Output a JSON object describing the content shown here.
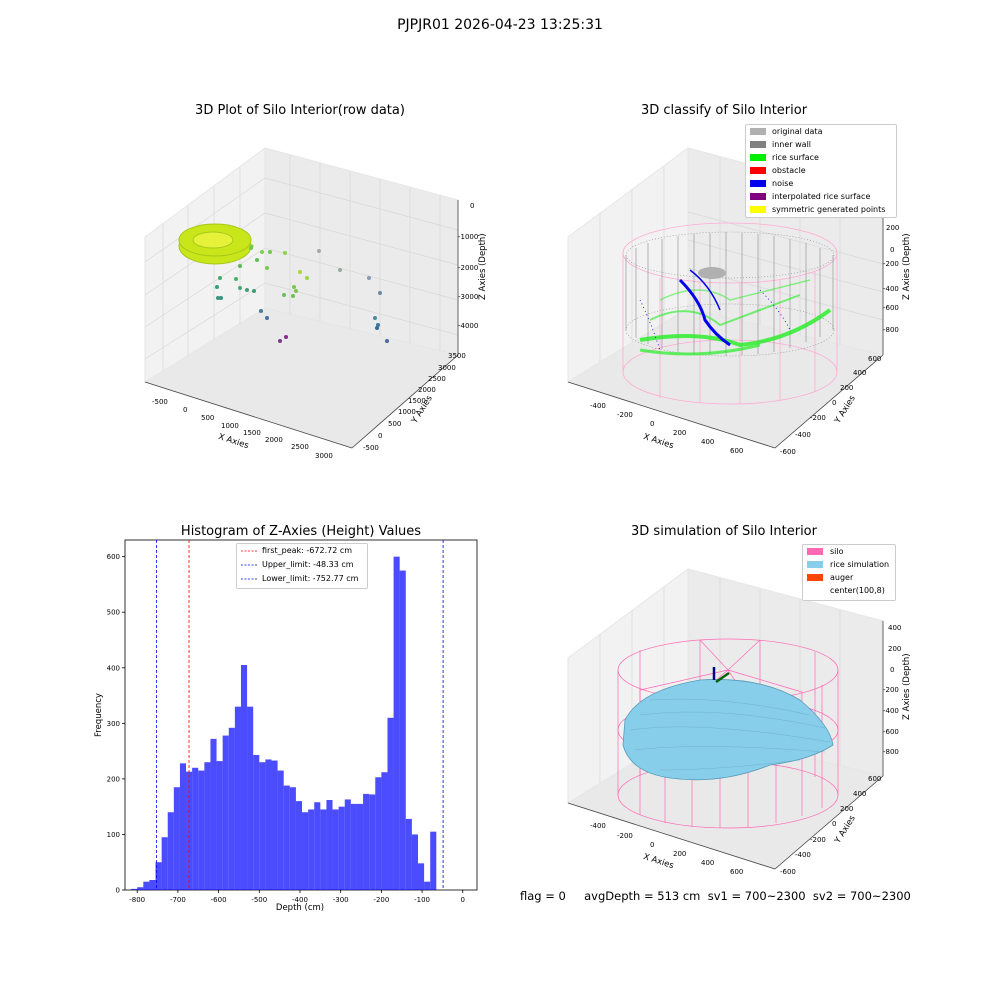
{
  "suptitle": "PJPJR01 2026-04-23 13:25:31",
  "footer": "flag = 0     avgDepth = 513 cm  sv1 = 700~2300  sv2 = 700~2300",
  "plots": {
    "raw": {
      "title": "3D Plot of Silo Interior(row data)",
      "xlabel": "X Axies",
      "ylabel": "Y Axies",
      "zlabel": "Z Axies (Depth)",
      "xticks": [
        "-500",
        "0",
        "500",
        "1000",
        "1500",
        "2000",
        "2500",
        "3000"
      ],
      "yticks": [
        "-500",
        "0",
        "500",
        "1000",
        "1500",
        "2000",
        "2500",
        "3000",
        "3500"
      ],
      "zticks": [
        "0",
        "-1000",
        "-2000",
        "-3000",
        "-4000"
      ]
    },
    "classify": {
      "title": "3D classify of Silo Interior",
      "xlabel": "X Axies",
      "ylabel": "Y Axies",
      "zlabel": "Z Axies (Depth)",
      "xticks": [
        "-400",
        "-200",
        "0",
        "200",
        "400",
        "600"
      ],
      "yticks": [
        "-600",
        "-400",
        "-200",
        "0",
        "200",
        "400",
        "600"
      ],
      "zticks": [
        "200",
        "0",
        "-200",
        "-400",
        "-600",
        "-800"
      ],
      "legend": [
        {
          "label": "original data",
          "color": "#b0b0b0"
        },
        {
          "label": "inner wall",
          "color": "#808080"
        },
        {
          "label": "rice surface",
          "color": "#00ee00"
        },
        {
          "label": "obstacle",
          "color": "#ff0000"
        },
        {
          "label": "noise",
          "color": "#0000ee"
        },
        {
          "label": "interpolated rice surface",
          "color": "#800080"
        },
        {
          "label": "symmetric generated points",
          "color": "#ffff00"
        }
      ]
    },
    "simulation": {
      "title": "3D simulation of Silo Interior",
      "xlabel": "X Axies",
      "ylabel": "Y Axies",
      "zlabel": "Z Axies (Depth)",
      "xticks": [
        "-400",
        "-200",
        "0",
        "200",
        "400",
        "600"
      ],
      "yticks": [
        "-600",
        "-400",
        "-200",
        "0",
        "200",
        "400",
        "600"
      ],
      "zticks": [
        "400",
        "200",
        "0",
        "-200",
        "-400",
        "-600",
        "-800"
      ],
      "legend": [
        {
          "label": "silo",
          "color": "#ff69b4"
        },
        {
          "label": "rice simulation",
          "color": "#87ceeb"
        },
        {
          "label": "auger",
          "color": "#ff4500"
        },
        {
          "label": "center(100,8)",
          "color": "#ffffff"
        }
      ]
    }
  },
  "chart_data": [
    {
      "type": "bar",
      "title": "Histogram of Z-Axies (Height) Values",
      "xlabel": "Depth (cm)",
      "ylabel": "Frequency",
      "xlim": [
        -830,
        35
      ],
      "ylim": [
        0,
        630
      ],
      "xticks": [
        -800,
        -700,
        -600,
        -500,
        -400,
        -300,
        -200,
        -100,
        0
      ],
      "yticks": [
        0,
        100,
        200,
        300,
        400,
        500,
        600
      ],
      "bar_color": "#0000ff",
      "bin_width": 15,
      "bin_edges_start": -815,
      "values": [
        2,
        5,
        15,
        18,
        50,
        95,
        140,
        185,
        228,
        213,
        220,
        215,
        230,
        272,
        232,
        278,
        292,
        330,
        405,
        330,
        243,
        230,
        235,
        233,
        215,
        188,
        185,
        160,
        140,
        145,
        158,
        145,
        162,
        145,
        150,
        163,
        155,
        155,
        173,
        172,
        203,
        212,
        310,
        600,
        575,
        128,
        100,
        48,
        15,
        105
      ],
      "vlines": [
        {
          "label": "first_peak: -672.72 cm",
          "x": -672.72,
          "color": "#ff0000"
        },
        {
          "label": "Upper_limit: -48.33 cm",
          "x": -48.33,
          "color": "#0000ff"
        },
        {
          "label": "Lower_limit: -752.77 cm",
          "x": -752.77,
          "color": "#0000ff"
        }
      ],
      "legend_position": "top-center"
    }
  ]
}
